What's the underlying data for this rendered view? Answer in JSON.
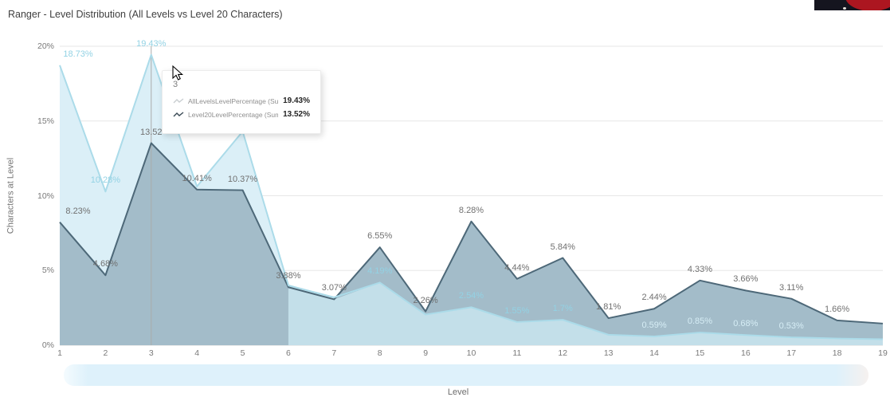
{
  "header": {
    "title": "Ranger - Level Distribution (All Levels vs Level 20 Characters)"
  },
  "chart_data": {
    "type": "area",
    "title": "Ranger - Level Distribution (All Levels vs Level 20 Characters)",
    "xlabel": "Level",
    "ylabel": "Characters at Level",
    "x": [
      1,
      2,
      3,
      4,
      5,
      6,
      7,
      8,
      9,
      10,
      11,
      12,
      13,
      14,
      15,
      16,
      17,
      18,
      19
    ],
    "ylim": [
      0,
      20
    ],
    "y_ticks": [
      {
        "label": "0%",
        "v": 0
      },
      {
        "label": "5%",
        "v": 5
      },
      {
        "label": "10%",
        "v": 10
      },
      {
        "label": "15%",
        "v": 15
      },
      {
        "label": "20%",
        "v": 20
      }
    ],
    "grid": true,
    "hover_level": 3,
    "series": [
      {
        "name": "AllLevelsLevelPercentage (Sum)",
        "fill": "#dbeff7",
        "line": "#abdbe9",
        "label_color": "#93d2e4",
        "label_color_on_dark": "#d6edf5",
        "values": [
          18.73,
          10.28,
          19.43,
          10.62,
          14.3,
          4.0,
          3.2,
          4.19,
          2.05,
          2.54,
          1.55,
          1.7,
          0.7,
          0.59,
          0.85,
          0.68,
          0.53,
          0.45,
          0.4
        ],
        "labels": [
          "18.73%",
          "10.28%",
          "19.43%",
          null,
          null,
          null,
          null,
          "4.19%",
          null,
          "2.54%",
          "1.55%",
          "1.7%",
          null,
          "0.59%",
          "0.85%",
          "0.68%",
          "0.53%",
          null,
          null
        ]
      },
      {
        "name": "Level20LevelPercentage (Sum)",
        "fill": "#a3bcc9",
        "line": "#4d6878",
        "label_color": "#707070",
        "overlap_fill": "#c3dfe9",
        "values": [
          8.23,
          4.68,
          13.52,
          10.41,
          10.37,
          3.88,
          3.07,
          6.55,
          2.26,
          8.28,
          4.44,
          5.84,
          1.81,
          2.44,
          4.33,
          3.66,
          3.11,
          1.66,
          1.45
        ],
        "labels": [
          "8.23%",
          "4.68%",
          "13.52",
          "10.41%",
          "10.37%",
          "3.88%",
          "3.07%",
          "6.55%",
          "2.26%",
          "8.28%",
          "4.44%",
          "5.84%",
          "1.81%",
          "2.44%",
          "4.33%",
          "3.66%",
          "3.11%",
          "1.66%",
          null
        ]
      }
    ]
  },
  "tooltip": {
    "header": "3",
    "rows": [
      {
        "name": "AllLevelsLevelPercentage (Sum)",
        "value": "19.43%"
      },
      {
        "name": "Level20LevelPercentage (Sum)",
        "value": "13.52%"
      }
    ]
  },
  "colors": {
    "gridline": "#e7e7e7",
    "zero_line": "#d9d9d9",
    "hover_line": "#ababab"
  }
}
